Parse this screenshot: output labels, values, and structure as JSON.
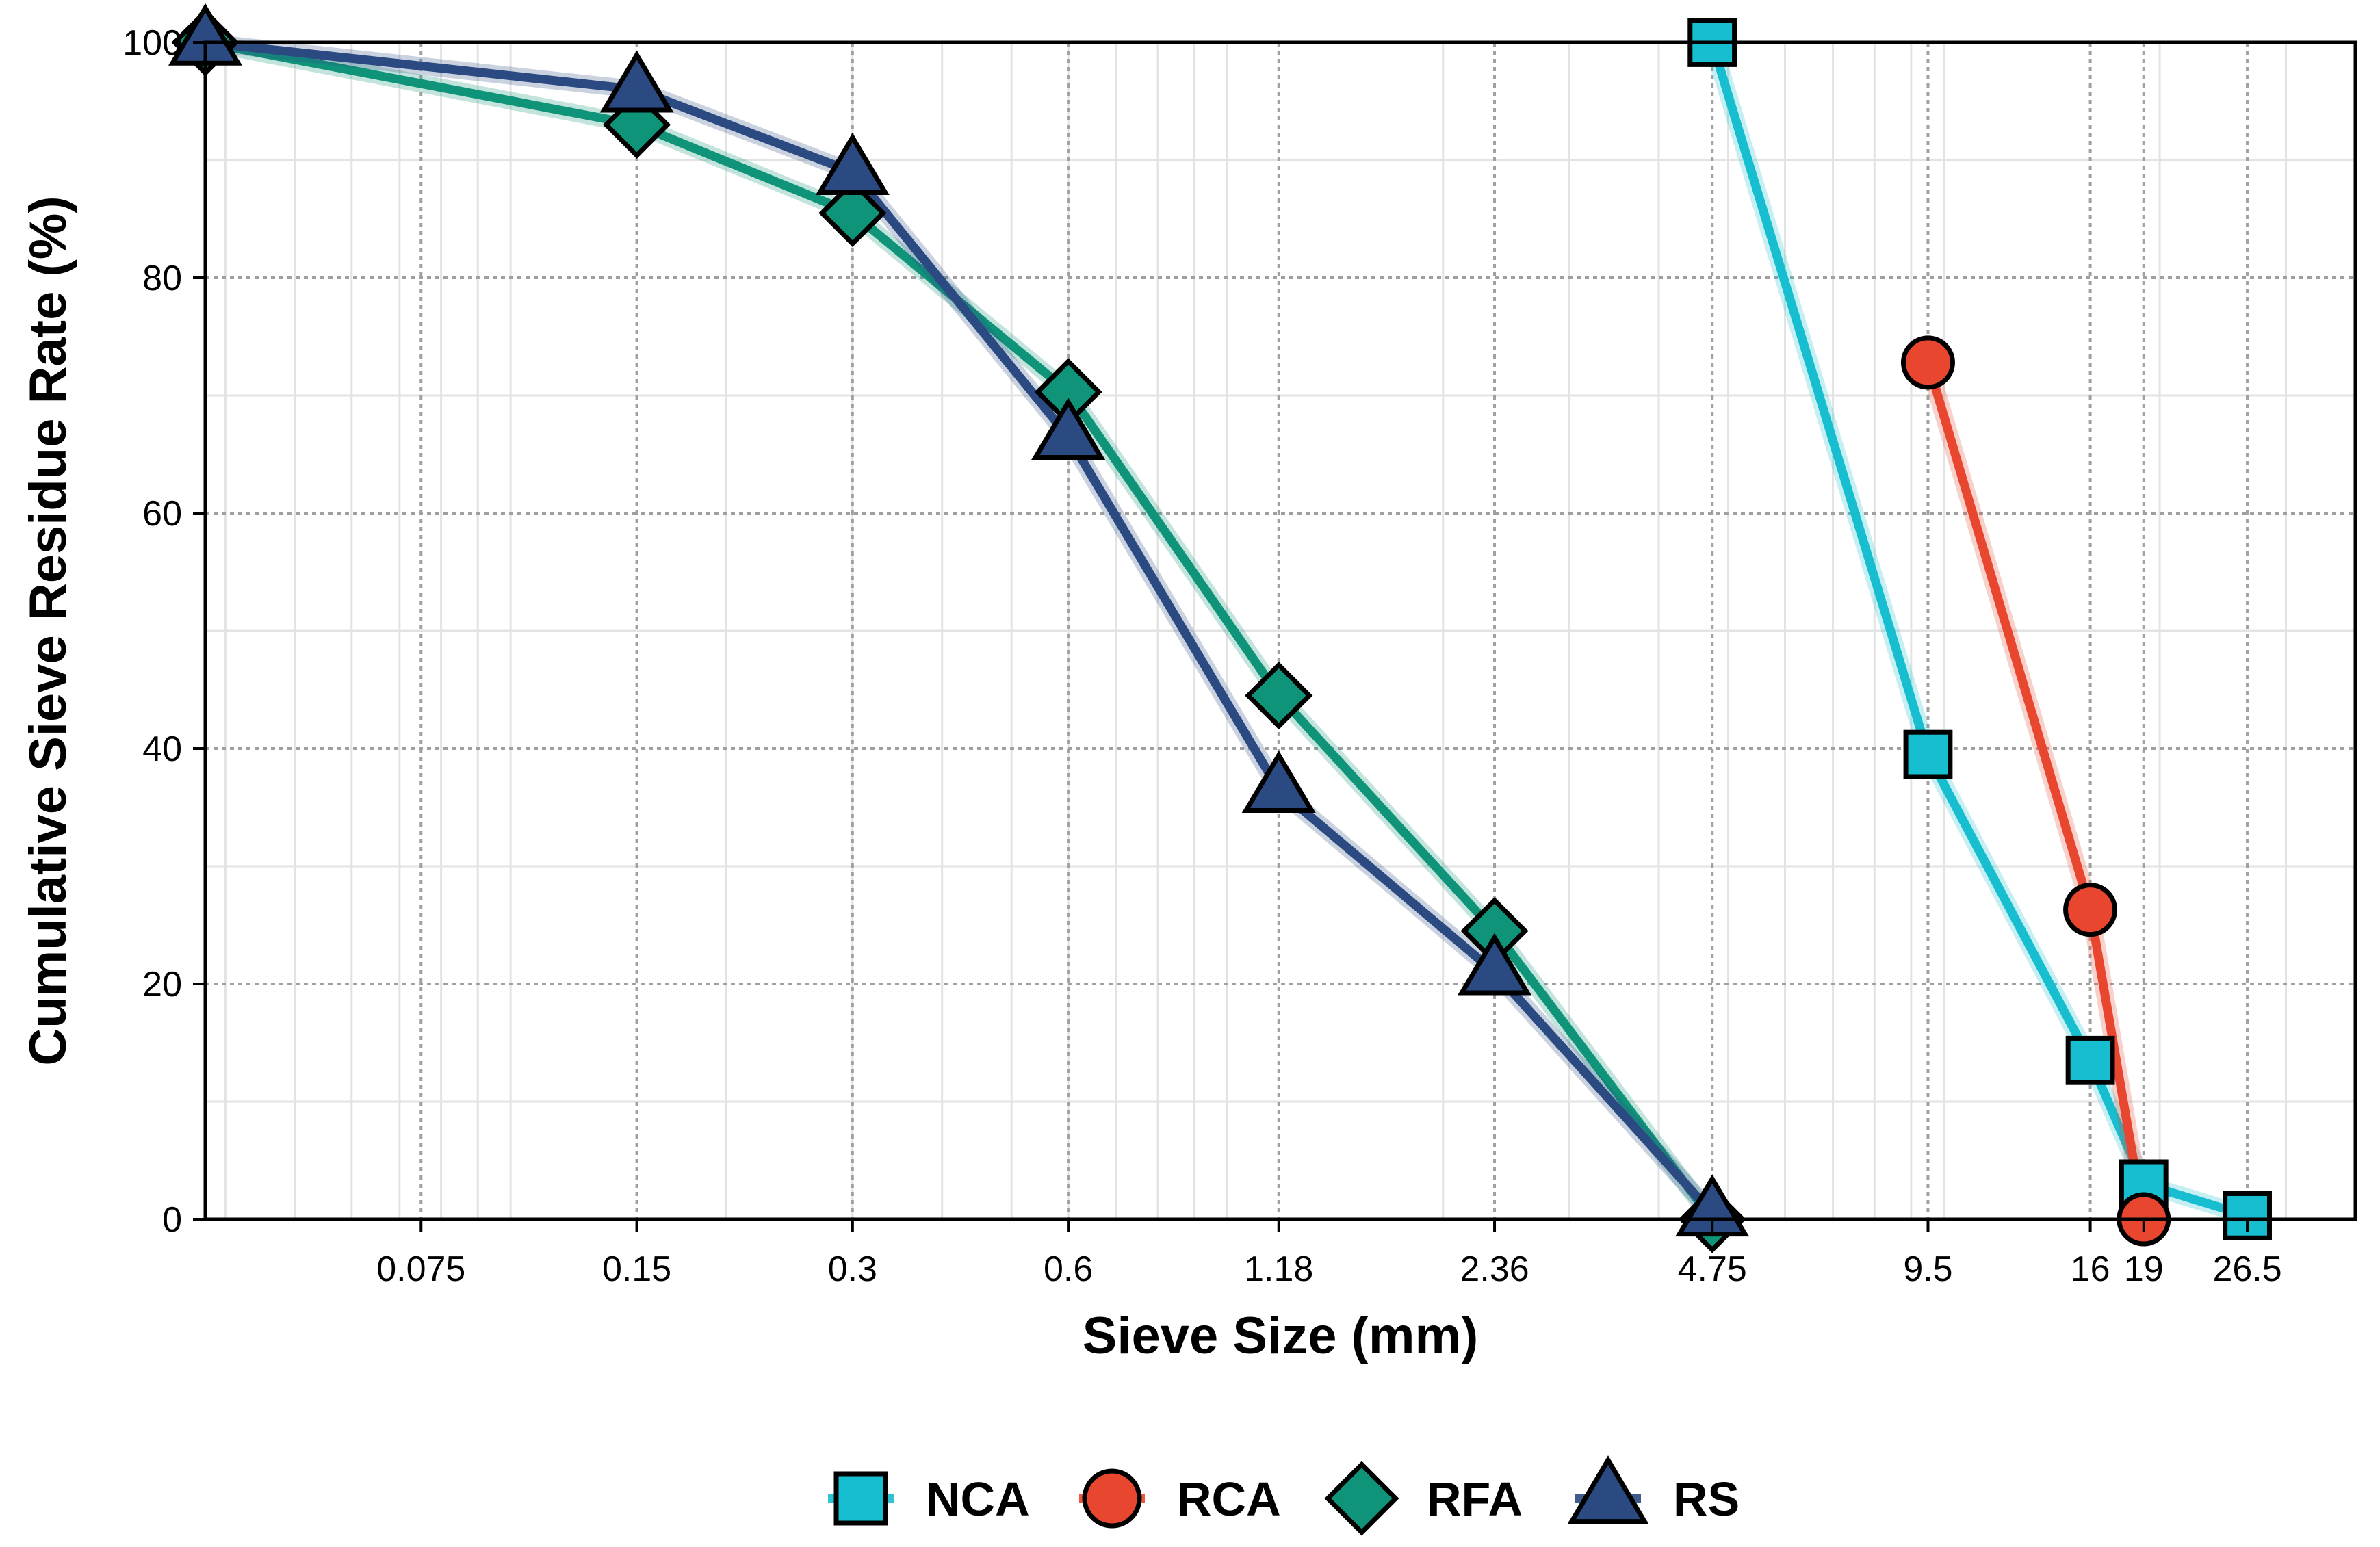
{
  "chart_data": {
    "type": "line",
    "title": "",
    "xlabel": "Sieve Size (mm)",
    "ylabel": "Cumulative Sieve Residue Rate (%)",
    "x_scale": "categorical-log-like",
    "x_ticks": [
      "0.075",
      "0.15",
      "0.3",
      "0.6",
      "1.18",
      "2.36",
      "4.75",
      "9.5",
      "16",
      "19",
      "26.5"
    ],
    "ylim": [
      0,
      100
    ],
    "y_ticks": [
      0,
      20,
      40,
      60,
      80,
      100
    ],
    "grid": true,
    "legend_position": "bottom",
    "series": [
      {
        "name": "NCA",
        "marker": "square",
        "color": "#17becf",
        "x": [
          4.75,
          9.5,
          16,
          19,
          26.5
        ],
        "y": [
          100,
          39.5,
          13.5,
          3,
          0.3
        ]
      },
      {
        "name": "RCA",
        "marker": "circle",
        "color": "#e8462f",
        "x": [
          9.5,
          16,
          19
        ],
        "y": [
          72.8,
          26.3,
          0
        ]
      },
      {
        "name": "RFA",
        "marker": "diamond",
        "color": "#0f9479",
        "x": [
          0.0375,
          0.15,
          0.3,
          0.6,
          1.18,
          2.36,
          4.75
        ],
        "y": [
          100,
          93,
          85.5,
          70.3,
          44.5,
          24.5,
          0
        ]
      },
      {
        "name": "RS",
        "marker": "triangle",
        "color": "#2b4a82",
        "x": [
          0.0375,
          0.15,
          0.3,
          0.6,
          1.18,
          2.36,
          4.75
        ],
        "y": [
          100,
          96,
          89,
          66.5,
          36.5,
          21,
          0.5
        ]
      }
    ],
    "extra_series_lines": {
      "NCA": {
        "x": [
          4.75
        ],
        "y": [
          100
        ]
      }
    }
  }
}
